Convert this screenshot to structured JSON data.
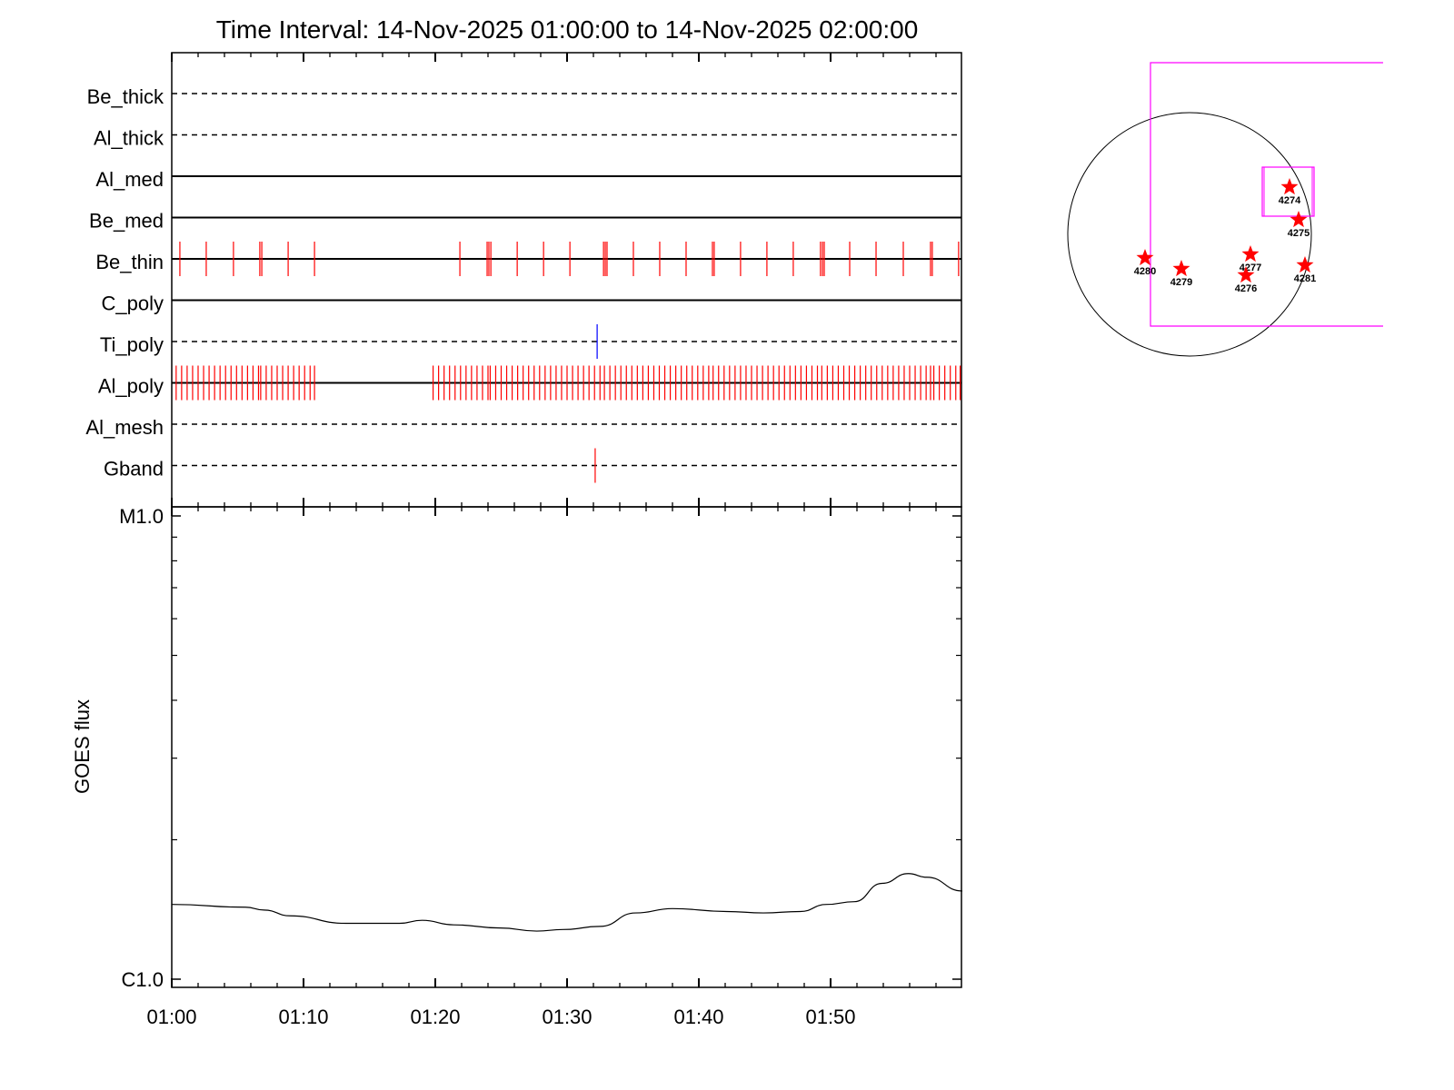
{
  "chart_data": [
    {
      "type": "event-raster",
      "title": "Time Interval: 14-Nov-2025 01:00:00 to 14-Nov-2025 02:00:00",
      "xlim": [
        "01:00:00",
        "02:00:00"
      ],
      "channels": [
        {
          "name": "Be_thick",
          "line": "dashed",
          "events": [],
          "event_color": "#ff0000"
        },
        {
          "name": "Al_thick",
          "line": "dashed",
          "events": [],
          "event_color": "#ff0000"
        },
        {
          "name": "Al_med",
          "line": "solid",
          "events": [],
          "event_color": "#ff0000"
        },
        {
          "name": "Be_med",
          "line": "solid",
          "events": [],
          "event_color": "#ff0000"
        },
        {
          "name": "Be_thin",
          "line": "solid",
          "event_color": "#ff0000",
          "events": [
            "01:00:37",
            "01:02:37",
            "01:04:41",
            "01:06:41",
            "01:06:50",
            "01:08:50",
            "01:10:50",
            "01:21:52",
            "01:23:56",
            "01:24:04",
            "01:24:13",
            "01:26:13",
            "01:28:13",
            "01:30:13",
            "01:32:46",
            "01:32:54",
            "01:33:02",
            "01:35:02",
            "01:37:02",
            "01:39:02",
            "01:41:02",
            "01:41:10",
            "01:43:10",
            "01:45:10",
            "01:47:10",
            "01:49:14",
            "01:49:23",
            "01:49:31",
            "01:51:27",
            "01:53:27",
            "01:55:31",
            "01:57:35",
            "01:57:43",
            "01:59:43"
          ]
        },
        {
          "name": "C_poly",
          "line": "solid",
          "events": [],
          "event_color": "#ff0000"
        },
        {
          "name": "Ti_poly",
          "line": "dashed",
          "event_color": "#0000ff",
          "events": [
            "01:32:17"
          ]
        },
        {
          "name": "Al_poly",
          "line": "solid",
          "event_color": "#ff0000",
          "events": [
            "01:00:20",
            "01:00:45",
            "01:01:10",
            "01:01:35",
            "01:02:00",
            "01:02:25",
            "01:02:50",
            "01:03:15",
            "01:03:40",
            "01:04:05",
            "01:04:30",
            "01:04:55",
            "01:05:20",
            "01:05:45",
            "01:06:10",
            "01:06:35",
            "01:06:45",
            "01:07:10",
            "01:07:35",
            "01:08:00",
            "01:08:25",
            "01:08:50",
            "01:09:15",
            "01:09:40",
            "01:10:05",
            "01:10:30",
            "01:10:50",
            "01:19:50",
            "01:20:15",
            "01:20:40",
            "01:21:05",
            "01:21:30",
            "01:21:55",
            "01:22:20",
            "01:22:45",
            "01:23:10",
            "01:23:35",
            "01:24:00",
            "01:24:10",
            "01:24:35",
            "01:25:00",
            "01:25:25",
            "01:25:50",
            "01:26:15",
            "01:26:40",
            "01:27:05",
            "01:27:30",
            "01:27:55",
            "01:28:20",
            "01:28:45",
            "01:29:10",
            "01:29:35",
            "01:30:00",
            "01:30:25",
            "01:30:50",
            "01:31:15",
            "01:31:40",
            "01:32:05",
            "01:32:30",
            "01:32:50",
            "01:33:15",
            "01:33:40",
            "01:34:05",
            "01:34:30",
            "01:34:55",
            "01:35:20",
            "01:35:45",
            "01:36:10",
            "01:36:35",
            "01:37:00",
            "01:37:25",
            "01:37:50",
            "01:38:15",
            "01:38:40",
            "01:39:05",
            "01:39:30",
            "01:39:55",
            "01:40:20",
            "01:40:45",
            "01:41:05",
            "01:41:30",
            "01:41:55",
            "01:42:20",
            "01:42:45",
            "01:43:10",
            "01:43:35",
            "01:44:00",
            "01:44:25",
            "01:44:50",
            "01:45:15",
            "01:45:40",
            "01:46:05",
            "01:46:30",
            "01:46:55",
            "01:47:20",
            "01:47:45",
            "01:48:10",
            "01:48:35",
            "01:49:00",
            "01:49:20",
            "01:49:45",
            "01:50:10",
            "01:50:35",
            "01:51:00",
            "01:51:25",
            "01:51:50",
            "01:52:15",
            "01:52:40",
            "01:53:05",
            "01:53:30",
            "01:53:55",
            "01:54:20",
            "01:54:45",
            "01:55:10",
            "01:55:35",
            "01:56:00",
            "01:56:25",
            "01:56:50",
            "01:57:15",
            "01:57:35",
            "01:57:50",
            "01:58:15",
            "01:58:40",
            "01:59:05",
            "01:59:30",
            "01:59:50"
          ]
        },
        {
          "name": "Al_mesh",
          "line": "dashed",
          "events": [],
          "event_color": "#ff0000"
        },
        {
          "name": "Gband",
          "line": "dashed",
          "event_color": "#ff0000",
          "events": [
            "01:32:08"
          ]
        }
      ]
    },
    {
      "type": "line",
      "ylabel": "GOES flux",
      "yscale": "log",
      "ylim": [
        1e-06,
        1e-05
      ],
      "ytick_labels": [
        {
          "value": 1e-05,
          "label": "M1.0"
        },
        {
          "value": 1e-06,
          "label": "C1.0"
        }
      ],
      "xlim": [
        "01:00:00",
        "02:00:00"
      ],
      "xtick_labels": [
        "01:00",
        "01:10",
        "01:20",
        "01:30",
        "01:40",
        "01:50"
      ],
      "series": [
        {
          "color": "#000000",
          "x": [
            "01:00:00",
            "01:05:36",
            "01:07:00",
            "01:09:00",
            "01:13:12",
            "01:17:18",
            "01:19:00",
            "01:21:24",
            "01:24:54",
            "01:27:42",
            "01:29:42",
            "01:32:30",
            "01:35:12",
            "01:38:00",
            "01:42:06",
            "01:44:54",
            "01:47:42",
            "01:49:42",
            "01:51:48",
            "01:53:54",
            "01:55:54",
            "01:57:18",
            "02:00:00"
          ],
          "y": [
            1.45e-06,
            1.43e-06,
            1.41e-06,
            1.37e-06,
            1.32e-06,
            1.32e-06,
            1.34e-06,
            1.31e-06,
            1.29e-06,
            1.27e-06,
            1.28e-06,
            1.3e-06,
            1.39e-06,
            1.42e-06,
            1.4e-06,
            1.39e-06,
            1.4e-06,
            1.45e-06,
            1.47e-06,
            1.61e-06,
            1.69e-06,
            1.66e-06,
            1.55e-06
          ]
        }
      ]
    },
    {
      "type": "map",
      "limb_color": "#000000",
      "fov_color": "#ff00ff",
      "marker_color": "#ff0000",
      "regions": [
        "4274",
        "4275",
        "4277",
        "4276",
        "4280",
        "4279",
        "4281"
      ]
    }
  ]
}
